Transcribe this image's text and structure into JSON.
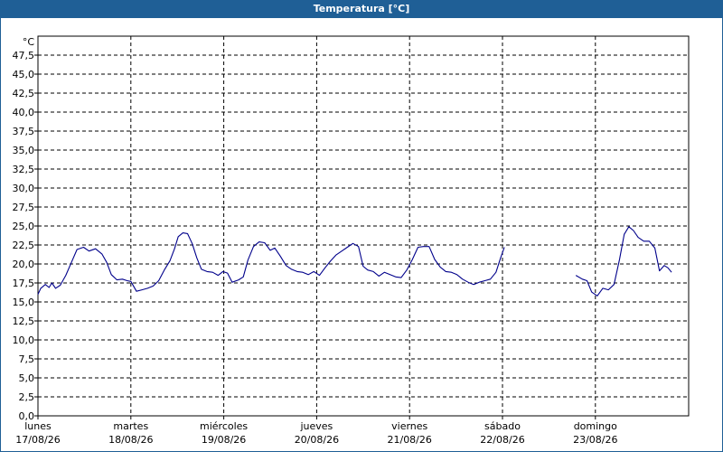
{
  "window": {
    "title": "Temperatura [°C]"
  },
  "chart_data": {
    "type": "line",
    "title": "Temperatura [°C]",
    "unit": "°C",
    "ylim": [
      0,
      50
    ],
    "y_ticks": [
      "0,0",
      "2,5",
      "5,0",
      "7,5",
      "10,0",
      "12,5",
      "15,0",
      "17,5",
      "20,0",
      "22,5",
      "25,0",
      "27,5",
      "30,0",
      "32,5",
      "35,0",
      "37,5",
      "40,0",
      "42,5",
      "45,0",
      "47,5"
    ],
    "x_range_days": [
      0,
      7.0
    ],
    "x_ticks": [
      {
        "day": "lunes",
        "date": "17/08/26"
      },
      {
        "day": "martes",
        "date": "18/08/26"
      },
      {
        "day": "miércoles",
        "date": "19/08/26"
      },
      {
        "day": "jueves",
        "date": "20/08/26"
      },
      {
        "day": "viernes",
        "date": "21/08/26"
      },
      {
        "day": "sábado",
        "date": "22/08/26"
      },
      {
        "day": "domingo",
        "date": "23/08/26"
      }
    ],
    "grid": true,
    "series": [
      {
        "color": "#00008b",
        "segments": [
          [
            [
              0.0,
              16.0
            ],
            [
              0.03,
              16.8
            ],
            [
              0.08,
              17.3
            ],
            [
              0.12,
              16.9
            ],
            [
              0.15,
              17.5
            ],
            [
              0.19,
              16.8
            ],
            [
              0.24,
              17.2
            ],
            [
              0.3,
              18.5
            ],
            [
              0.36,
              20.2
            ],
            [
              0.42,
              21.9
            ],
            [
              0.49,
              22.2
            ],
            [
              0.55,
              21.7
            ],
            [
              0.62,
              22.0
            ],
            [
              0.69,
              21.3
            ],
            [
              0.74,
              20.2
            ],
            [
              0.79,
              18.6
            ],
            [
              0.85,
              17.9
            ],
            [
              0.91,
              18.0
            ],
            [
              0.96,
              17.8
            ],
            [
              1.0,
              17.7
            ],
            [
              1.06,
              16.4
            ],
            [
              1.12,
              16.6
            ],
            [
              1.18,
              16.8
            ],
            [
              1.24,
              17.1
            ],
            [
              1.3,
              17.8
            ],
            [
              1.36,
              19.2
            ],
            [
              1.42,
              20.4
            ],
            [
              1.47,
              22.0
            ],
            [
              1.51,
              23.6
            ],
            [
              1.56,
              24.1
            ],
            [
              1.61,
              24.0
            ],
            [
              1.66,
              22.7
            ],
            [
              1.71,
              20.8
            ],
            [
              1.76,
              19.3
            ],
            [
              1.82,
              19.0
            ],
            [
              1.88,
              18.9
            ],
            [
              1.94,
              18.5
            ],
            [
              1.99,
              19.0
            ],
            [
              2.04,
              18.8
            ],
            [
              2.09,
              17.6
            ],
            [
              2.16,
              17.9
            ],
            [
              2.21,
              18.3
            ],
            [
              2.26,
              20.5
            ],
            [
              2.32,
              22.3
            ],
            [
              2.38,
              22.9
            ],
            [
              2.44,
              22.8
            ],
            [
              2.5,
              21.8
            ],
            [
              2.55,
              22.1
            ],
            [
              2.61,
              21.0
            ],
            [
              2.67,
              19.8
            ],
            [
              2.73,
              19.3
            ],
            [
              2.79,
              19.0
            ],
            [
              2.85,
              18.9
            ],
            [
              2.91,
              18.6
            ],
            [
              2.97,
              19.0
            ],
            [
              3.03,
              18.5
            ],
            [
              3.09,
              19.5
            ],
            [
              3.15,
              20.4
            ],
            [
              3.21,
              21.2
            ],
            [
              3.27,
              21.7
            ],
            [
              3.33,
              22.2
            ],
            [
              3.39,
              22.7
            ],
            [
              3.45,
              22.3
            ],
            [
              3.5,
              19.7
            ],
            [
              3.55,
              19.2
            ],
            [
              3.61,
              19.0
            ],
            [
              3.67,
              18.4
            ],
            [
              3.73,
              18.9
            ],
            [
              3.79,
              18.6
            ],
            [
              3.85,
              18.3
            ],
            [
              3.91,
              18.2
            ],
            [
              3.97,
              19.2
            ],
            [
              4.03,
              20.6
            ],
            [
              4.09,
              22.2
            ],
            [
              4.15,
              22.3
            ],
            [
              4.21,
              22.3
            ],
            [
              4.27,
              20.6
            ],
            [
              4.33,
              19.6
            ],
            [
              4.39,
              19.0
            ],
            [
              4.45,
              18.9
            ],
            [
              4.51,
              18.6
            ],
            [
              4.57,
              18.0
            ],
            [
              4.63,
              17.6
            ],
            [
              4.69,
              17.3
            ],
            [
              4.75,
              17.6
            ],
            [
              4.81,
              17.8
            ],
            [
              4.87,
              18.0
            ],
            [
              4.93,
              18.9
            ],
            [
              4.98,
              20.8
            ],
            [
              5.02,
              22.2
            ]
          ],
          [
            [
              5.79,
              18.5
            ],
            [
              5.86,
              18.0
            ],
            [
              5.91,
              17.8
            ],
            [
              5.96,
              16.3
            ],
            [
              6.02,
              15.8
            ],
            [
              6.08,
              16.8
            ],
            [
              6.14,
              16.6
            ],
            [
              6.2,
              17.3
            ],
            [
              6.26,
              20.6
            ],
            [
              6.31,
              23.9
            ],
            [
              6.36,
              24.9
            ],
            [
              6.41,
              24.4
            ],
            [
              6.46,
              23.5
            ],
            [
              6.52,
              23.0
            ],
            [
              6.58,
              23.0
            ],
            [
              6.64,
              22.1
            ],
            [
              6.69,
              19.1
            ],
            [
              6.74,
              19.8
            ],
            [
              6.78,
              19.5
            ],
            [
              6.82,
              18.9
            ]
          ]
        ]
      }
    ]
  }
}
